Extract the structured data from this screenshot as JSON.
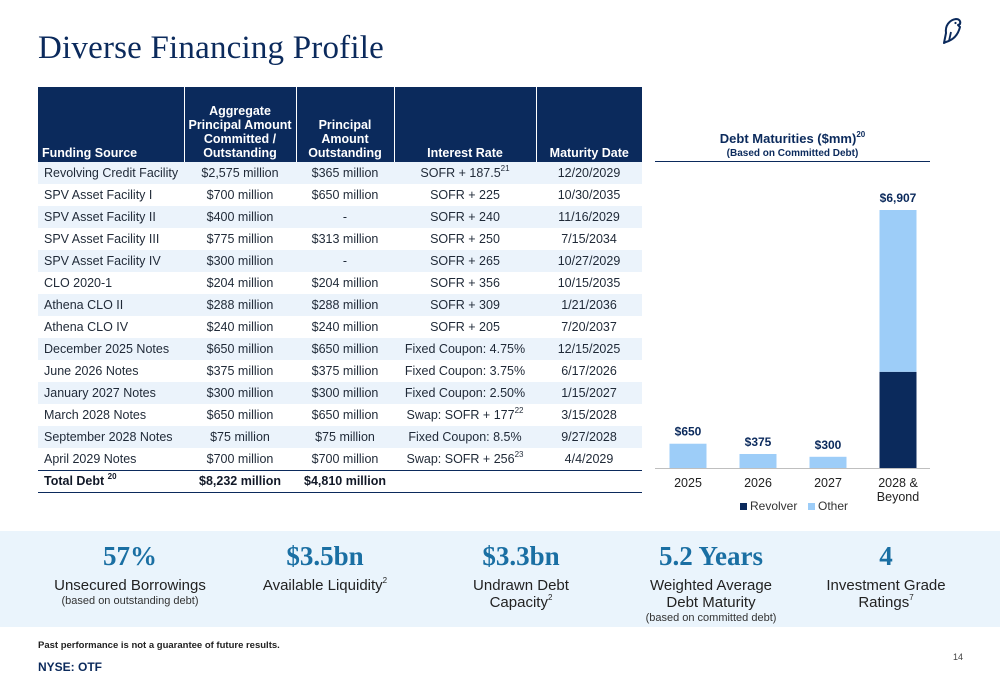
{
  "page": {
    "title": "Diverse Financing Profile",
    "page_number": "14",
    "disclaimer": "Past performance is not a guarantee of future results.",
    "ticker": "NYSE: OTF"
  },
  "colors": {
    "navy": "#0b2a5c",
    "light_blue": "#9dcdf8",
    "accent_blue": "#1a6fa3",
    "band_bg": "#eaf4fc"
  },
  "icons": {
    "logo": "bird-logo-icon"
  },
  "table": {
    "headers": [
      "Funding Source",
      "Aggregate Principal Amount Committed / Outstanding",
      "Principal Amount Outstanding",
      "Interest Rate",
      "Maturity Date"
    ],
    "rows": [
      {
        "source": "Revolving Credit Facility",
        "committed": "$2,575 million",
        "outstanding": "$365 million",
        "rate": "SOFR + 187.5",
        "rate_sup": "21",
        "maturity": "12/20/2029"
      },
      {
        "source": "SPV Asset Facility I",
        "committed": "$700 million",
        "outstanding": "$650 million",
        "rate": "SOFR + 225",
        "rate_sup": "",
        "maturity": "10/30/2035"
      },
      {
        "source": "SPV Asset Facility II",
        "committed": "$400 million",
        "outstanding": "-",
        "rate": "SOFR + 240",
        "rate_sup": "",
        "maturity": "11/16/2029"
      },
      {
        "source": "SPV Asset Facility III",
        "committed": "$775 million",
        "outstanding": "$313 million",
        "rate": "SOFR + 250",
        "rate_sup": "",
        "maturity": "7/15/2034"
      },
      {
        "source": "SPV Asset Facility IV",
        "committed": "$300 million",
        "outstanding": "-",
        "rate": "SOFR + 265",
        "rate_sup": "",
        "maturity": "10/27/2029"
      },
      {
        "source": "CLO 2020-1",
        "committed": "$204 million",
        "outstanding": "$204 million",
        "rate": "SOFR + 356",
        "rate_sup": "",
        "maturity": "10/15/2035"
      },
      {
        "source": "Athena CLO II",
        "committed": "$288 million",
        "outstanding": "$288 million",
        "rate": "SOFR + 309",
        "rate_sup": "",
        "maturity": "1/21/2036"
      },
      {
        "source": "Athena CLO IV",
        "committed": "$240 million",
        "outstanding": "$240 million",
        "rate": "SOFR + 205",
        "rate_sup": "",
        "maturity": "7/20/2037"
      },
      {
        "source": "December 2025 Notes",
        "committed": "$650 million",
        "outstanding": "$650 million",
        "rate": "Fixed Coupon: 4.75%",
        "rate_sup": "",
        "maturity": "12/15/2025"
      },
      {
        "source": "June 2026 Notes",
        "committed": "$375 million",
        "outstanding": "$375 million",
        "rate": "Fixed Coupon: 3.75%",
        "rate_sup": "",
        "maturity": "6/17/2026"
      },
      {
        "source": "January 2027 Notes",
        "committed": "$300 million",
        "outstanding": "$300 million",
        "rate": "Fixed Coupon: 2.50%",
        "rate_sup": "",
        "maturity": "1/15/2027"
      },
      {
        "source": "March 2028 Notes",
        "committed": "$650 million",
        "outstanding": "$650 million",
        "rate": "Swap: SOFR + 177",
        "rate_sup": "22",
        "maturity": "3/15/2028"
      },
      {
        "source": "September 2028 Notes",
        "committed": "$75 million",
        "outstanding": "$75 million",
        "rate": "Fixed Coupon: 8.5%",
        "rate_sup": "",
        "maturity": "9/27/2028"
      },
      {
        "source": "April 2029 Notes",
        "committed": "$700 million",
        "outstanding": "$700 million",
        "rate": "Swap: SOFR + 256",
        "rate_sup": "23",
        "maturity": "4/4/2029"
      }
    ],
    "total": {
      "label": "Total Debt",
      "label_sup": "20",
      "committed": "$8,232 million",
      "outstanding": "$4,810 million"
    }
  },
  "chart_data": {
    "type": "bar",
    "stacked": true,
    "title": "Debt Maturities ($mm)",
    "title_sup": "20",
    "subtitle": "(Based on Committed Debt)",
    "categories": [
      "2025",
      "2026",
      "2027",
      "2028 & Beyond"
    ],
    "series": [
      {
        "name": "Revolver",
        "color": "#0b2a5c",
        "values": [
          0,
          0,
          0,
          2575
        ]
      },
      {
        "name": "Other",
        "color": "#9dcdf8",
        "values": [
          650,
          375,
          300,
          4332
        ]
      }
    ],
    "data_labels": [
      "$650",
      "$375",
      "$300",
      "$6,907"
    ],
    "ylim": [
      0,
      6907
    ],
    "legend_position": "bottom",
    "grid": false
  },
  "stats": [
    {
      "big": "57%",
      "label": "Unsecured Borrowings",
      "sup": "",
      "small": "(based on outstanding debt)"
    },
    {
      "big": "$3.5bn",
      "label": "Available Liquidity",
      "sup": "2",
      "small": ""
    },
    {
      "big": "$3.3bn",
      "label": "Undrawn Debt Capacity",
      "sup": "2",
      "small": ""
    },
    {
      "big": "5.2 Years",
      "label": "Weighted Average Debt Maturity",
      "sup": "",
      "small": "(based on committed debt)"
    },
    {
      "big": "4",
      "label": "Investment Grade Ratings",
      "sup": "7",
      "small": ""
    }
  ]
}
